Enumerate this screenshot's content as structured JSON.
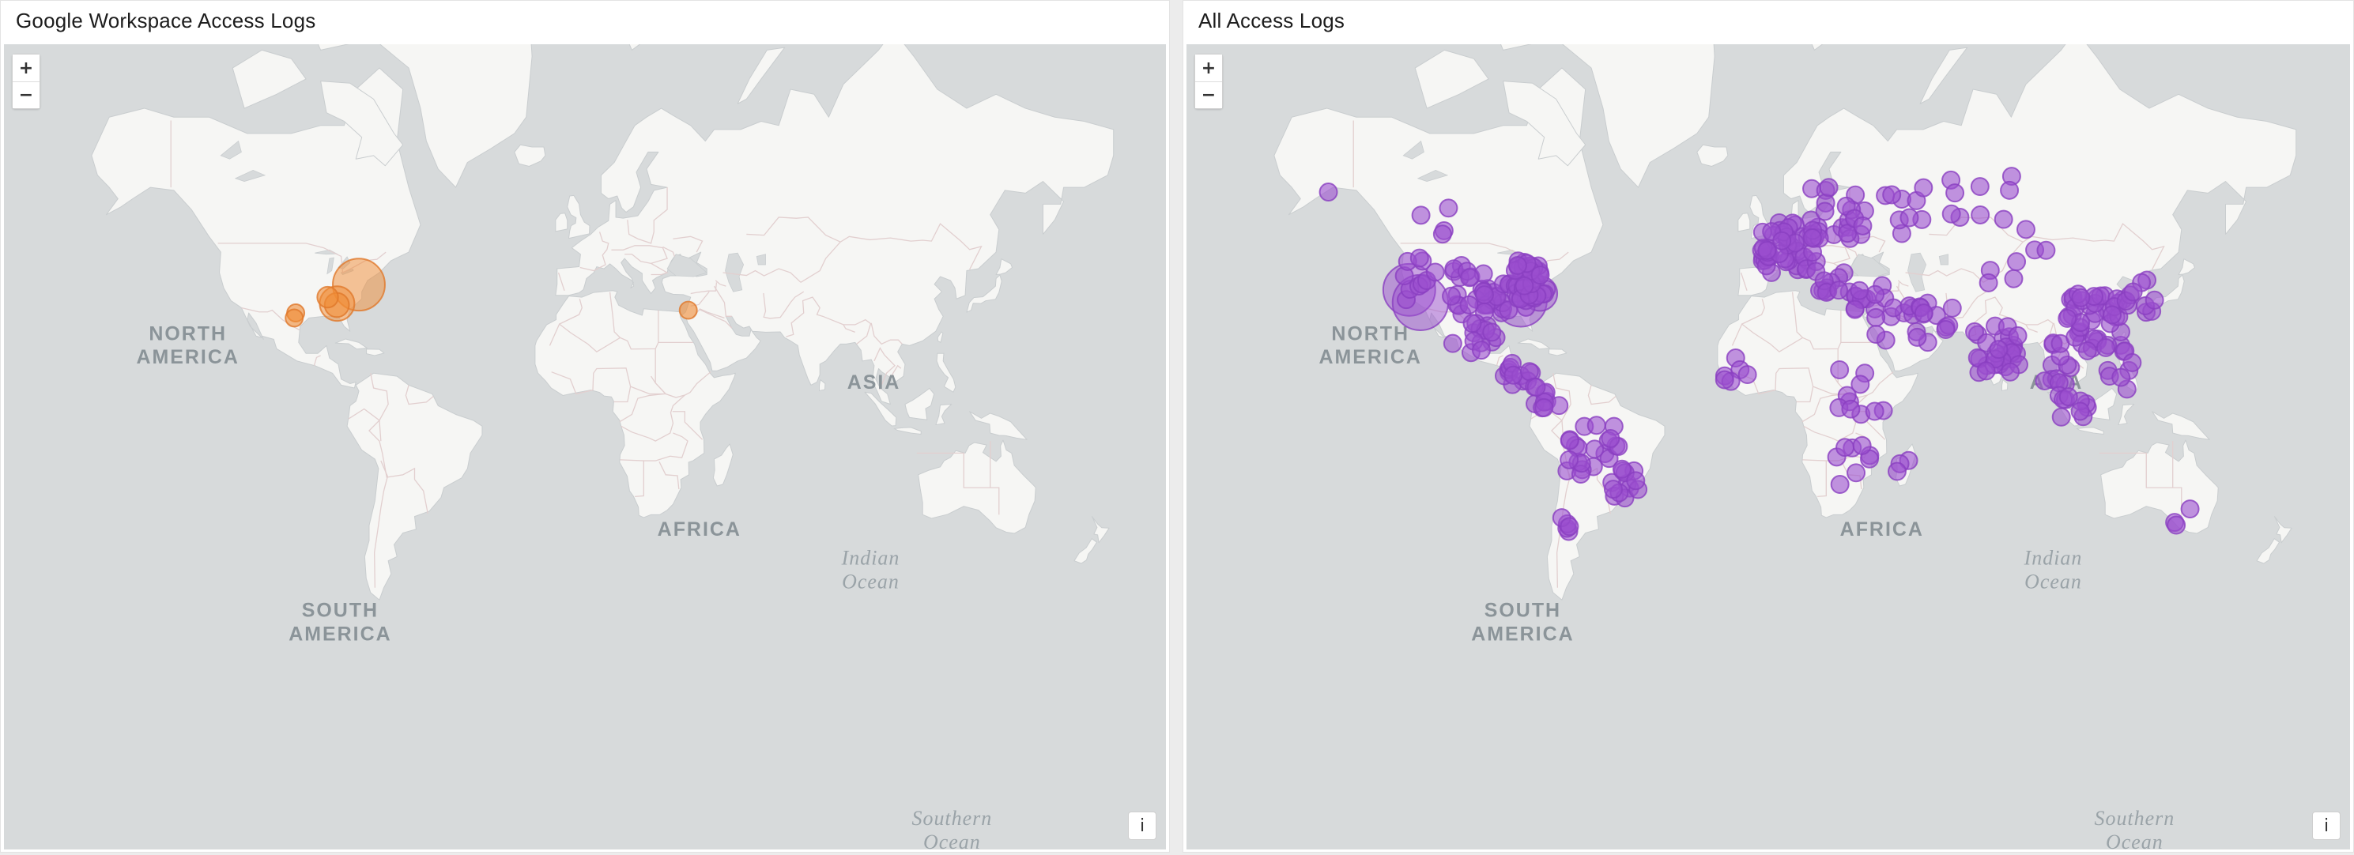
{
  "panels": [
    {
      "title": "Google Workspace Access Logs",
      "marker_color": "#f08c35",
      "marker_stroke": "#e0782a"
    },
    {
      "title": "All Access Logs",
      "marker_color": "#9b4fcf",
      "marker_stroke": "#8a3fc0"
    }
  ],
  "map_controls": {
    "zoom_in": "+",
    "zoom_out": "−",
    "info": "i"
  },
  "map_labels": {
    "north_america": [
      "NORTH",
      "AMERICA"
    ],
    "south_america": [
      "SOUTH",
      "AMERICA"
    ],
    "africa": [
      "AFRICA"
    ],
    "asia": [
      "ASIA"
    ],
    "indian_ocean": [
      "Indian",
      "Ocean"
    ],
    "southern_ocean": [
      "Southern",
      "Ocean"
    ]
  },
  "colors": {
    "land": "#f6f6f4",
    "water": "#d7dadb",
    "border": "#e2cfcf"
  },
  "markers_left": [
    {
      "lon": -77.0,
      "lat": 38.9,
      "size": 3
    },
    {
      "lon": -84.4,
      "lat": 33.7,
      "size": 2
    },
    {
      "lon": -84.5,
      "lat": 33.3,
      "size": 1.4
    },
    {
      "lon": -87.6,
      "lat": 35.5,
      "size": 1.2
    },
    {
      "lon": -98.5,
      "lat": 31.0,
      "size": 1
    },
    {
      "lon": -99.0,
      "lat": 29.5,
      "size": 1
    },
    {
      "lon": 35.2,
      "lat": 31.8,
      "size": 1
    }
  ],
  "markers_right_large": [
    {
      "lon": -122.0,
      "lat": 37.5,
      "size": 3
    },
    {
      "lon": -118.2,
      "lat": 34.0,
      "size": 3.2
    },
    {
      "lon": -84.0,
      "lat": 34.5,
      "size": 3
    },
    {
      "lon": -77.5,
      "lat": 36.5,
      "size": 2
    }
  ]
}
